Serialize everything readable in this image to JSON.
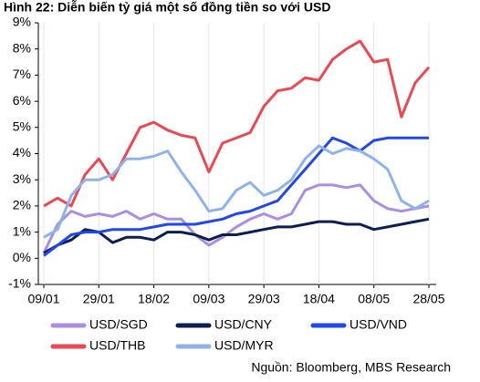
{
  "chart_data": {
    "type": "line",
    "title": "Hình 22: Diễn biến tỷ giá một số đồng tiền so với USD",
    "source": "Nguồn: Bloomberg, MBS Research",
    "categories": [
      "09/01",
      null,
      null,
      null,
      "29/01",
      null,
      null,
      null,
      "18/02",
      null,
      null,
      null,
      "09/03",
      null,
      null,
      null,
      "29/03",
      null,
      null,
      null,
      "18/04",
      null,
      null,
      null,
      "08/05",
      null,
      null,
      null,
      "28/05"
    ],
    "ylim": [
      -1,
      9
    ],
    "yticks": [
      {
        "value": 9,
        "label": "9%"
      },
      {
        "value": 8,
        "label": "8%"
      },
      {
        "value": 7,
        "label": "7%"
      },
      {
        "value": 6,
        "label": "6%"
      },
      {
        "value": 5,
        "label": "5%"
      },
      {
        "value": 4,
        "label": "4%"
      },
      {
        "value": 3,
        "label": "3%"
      },
      {
        "value": 2,
        "label": "2%"
      },
      {
        "value": 1,
        "label": "1%"
      },
      {
        "value": 0,
        "label": "0%"
      },
      {
        "value": -1,
        "label": "-1%"
      }
    ],
    "series": [
      {
        "name": "USD/SGD",
        "color": "#a98fe0",
        "values": [
          0.2,
          1.3,
          1.8,
          1.6,
          1.7,
          1.6,
          1.8,
          1.5,
          1.7,
          1.5,
          1.5,
          0.9,
          0.5,
          0.8,
          1.2,
          1.5,
          1.7,
          1.5,
          1.7,
          2.6,
          2.8,
          2.8,
          2.7,
          2.8,
          2.2,
          1.9,
          1.8,
          1.9,
          2.0
        ]
      },
      {
        "name": "USD/CNY",
        "color": "#0d1f4f",
        "values": [
          0.2,
          0.5,
          0.7,
          1.1,
          1.0,
          0.6,
          0.8,
          0.8,
          0.7,
          1.0,
          1.0,
          0.9,
          0.7,
          0.9,
          0.9,
          1.0,
          1.1,
          1.2,
          1.2,
          1.3,
          1.4,
          1.4,
          1.3,
          1.3,
          1.1,
          1.2,
          1.3,
          1.4,
          1.5
        ]
      },
      {
        "name": "USD/VND",
        "color": "#2347e8",
        "values": [
          0.1,
          0.5,
          0.9,
          1.0,
          1.0,
          1.1,
          1.1,
          1.1,
          1.2,
          1.3,
          1.3,
          1.3,
          1.4,
          1.5,
          1.7,
          1.8,
          2.0,
          2.2,
          2.8,
          3.4,
          4.0,
          4.6,
          4.4,
          4.1,
          4.5,
          4.6,
          4.6,
          4.6,
          4.6
        ]
      },
      {
        "name": "USD/THB",
        "color": "#e84a55",
        "values": [
          2.0,
          2.3,
          2.0,
          3.2,
          3.8,
          3.0,
          4.0,
          5.0,
          5.2,
          4.9,
          4.7,
          4.6,
          3.3,
          4.4,
          4.6,
          4.8,
          5.8,
          6.4,
          6.5,
          6.9,
          6.8,
          7.6,
          8.0,
          8.3,
          7.5,
          7.6,
          5.4,
          6.7,
          7.3
        ]
      },
      {
        "name": "USD/MYR",
        "color": "#8fb3e6",
        "values": [
          0.8,
          1.1,
          2.4,
          3.0,
          3.0,
          3.2,
          3.8,
          3.8,
          3.9,
          4.1,
          3.3,
          2.6,
          1.8,
          1.9,
          2.6,
          2.9,
          2.4,
          2.6,
          3.0,
          3.8,
          4.3,
          4.0,
          4.2,
          4.1,
          3.8,
          3.4,
          2.2,
          1.9,
          2.2
        ]
      }
    ]
  }
}
